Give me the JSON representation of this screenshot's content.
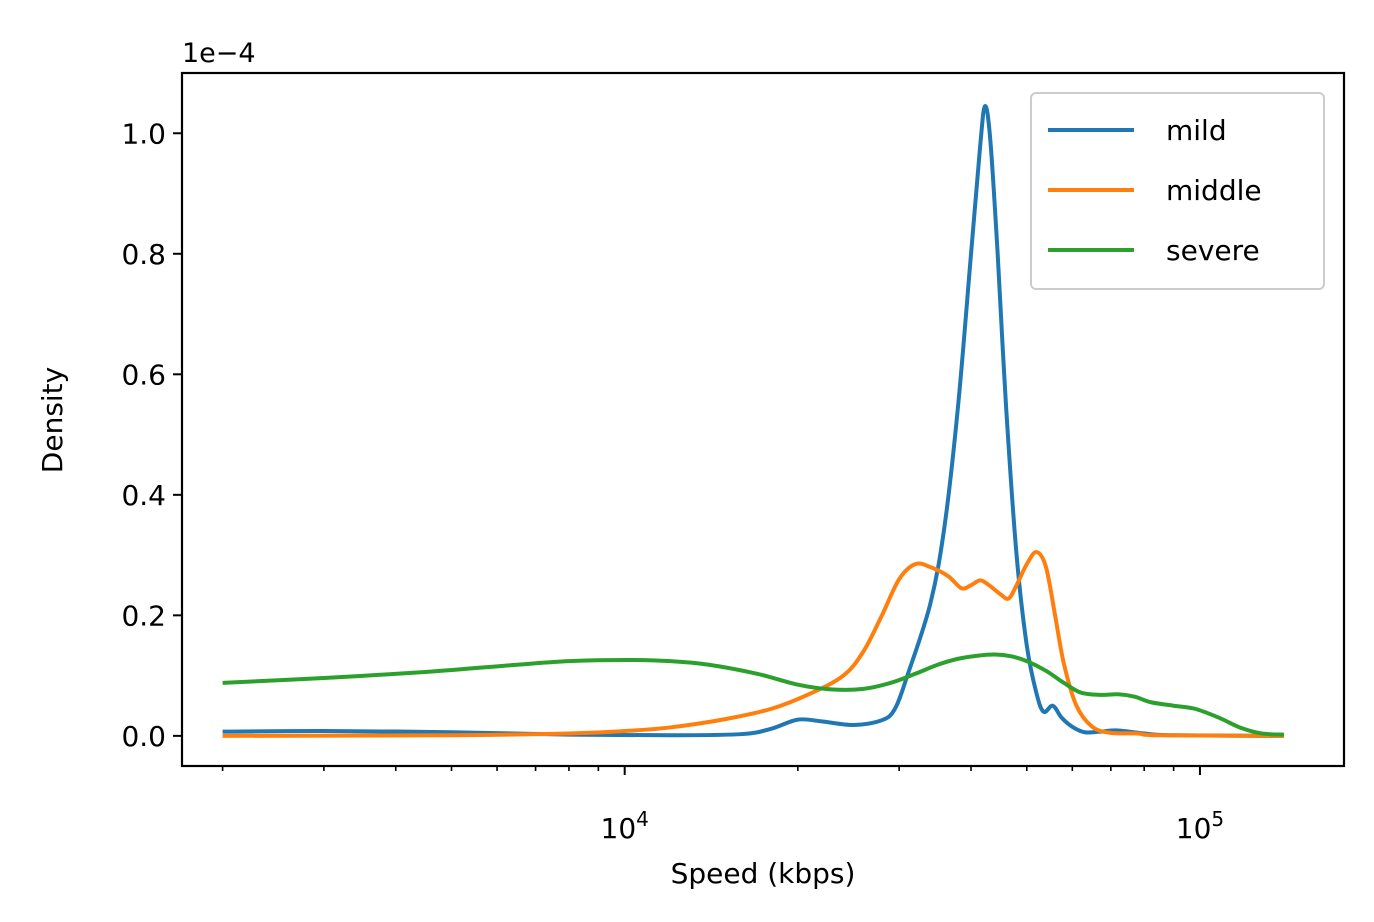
{
  "chart_data": {
    "type": "line",
    "xlabel": "Speed (kbps)",
    "ylabel": "Density",
    "xscale": "log",
    "xlim": [
      1700,
      178000
    ],
    "ylim": [
      -0.05,
      1.1
    ],
    "y_multiplier": "1e−4",
    "y_ticks": [
      0.0,
      0.2,
      0.4,
      0.6,
      0.8,
      1.0
    ],
    "y_tick_labels": [
      "0.0",
      "0.2",
      "0.4",
      "0.6",
      "0.8",
      "1.0"
    ],
    "x_major_ticks": [
      {
        "value": 10000,
        "base": "10",
        "exp": "4"
      },
      {
        "value": 100000,
        "base": "10",
        "exp": "5"
      }
    ],
    "x_minor_ticks": [
      2000,
      3000,
      4000,
      5000,
      6000,
      7000,
      8000,
      9000,
      20000,
      30000,
      40000,
      50000,
      60000,
      70000,
      80000,
      90000
    ],
    "grid": false,
    "legend_position": "top-right",
    "series": [
      {
        "name": "mild",
        "color": "#1f77b4",
        "points": [
          [
            2000,
            0.007
          ],
          [
            3000,
            0.008
          ],
          [
            5000,
            0.006
          ],
          [
            8000,
            0.002
          ],
          [
            12000,
            0.001
          ],
          [
            16000,
            0.003
          ],
          [
            18000,
            0.012
          ],
          [
            20000,
            0.027
          ],
          [
            22000,
            0.024
          ],
          [
            25000,
            0.018
          ],
          [
            28000,
            0.026
          ],
          [
            29500,
            0.045
          ],
          [
            31000,
            0.1
          ],
          [
            34000,
            0.22
          ],
          [
            36000,
            0.35
          ],
          [
            38000,
            0.55
          ],
          [
            40000,
            0.8
          ],
          [
            41500,
            0.98
          ],
          [
            42300,
            1.045
          ],
          [
            43200,
            0.99
          ],
          [
            44500,
            0.8
          ],
          [
            46000,
            0.55
          ],
          [
            48000,
            0.3
          ],
          [
            50000,
            0.15
          ],
          [
            52000,
            0.07
          ],
          [
            53500,
            0.04
          ],
          [
            55500,
            0.05
          ],
          [
            57500,
            0.03
          ],
          [
            60000,
            0.015
          ],
          [
            63000,
            0.006
          ],
          [
            67000,
            0.007
          ],
          [
            72000,
            0.009
          ],
          [
            80000,
            0.004
          ],
          [
            90000,
            0.001
          ],
          [
            140000,
            0.0
          ]
        ]
      },
      {
        "name": "middle",
        "color": "#ff7f0e",
        "points": [
          [
            2000,
            0.0
          ],
          [
            5000,
            0.001
          ],
          [
            8000,
            0.004
          ],
          [
            10000,
            0.008
          ],
          [
            12000,
            0.014
          ],
          [
            15000,
            0.028
          ],
          [
            18000,
            0.045
          ],
          [
            21000,
            0.07
          ],
          [
            24000,
            0.1
          ],
          [
            26000,
            0.14
          ],
          [
            28000,
            0.2
          ],
          [
            30000,
            0.26
          ],
          [
            32000,
            0.285
          ],
          [
            34000,
            0.28
          ],
          [
            36500,
            0.265
          ],
          [
            38500,
            0.245
          ],
          [
            40000,
            0.25
          ],
          [
            41500,
            0.258
          ],
          [
            43000,
            0.25
          ],
          [
            45000,
            0.235
          ],
          [
            46500,
            0.228
          ],
          [
            48000,
            0.25
          ],
          [
            50000,
            0.285
          ],
          [
            52000,
            0.305
          ],
          [
            54000,
            0.28
          ],
          [
            56000,
            0.2
          ],
          [
            58000,
            0.12
          ],
          [
            61000,
            0.05
          ],
          [
            65000,
            0.015
          ],
          [
            70000,
            0.005
          ],
          [
            78000,
            0.004
          ],
          [
            85000,
            0.001
          ],
          [
            140000,
            0.0
          ]
        ]
      },
      {
        "name": "severe",
        "color": "#2ca02c",
        "points": [
          [
            2000,
            0.088
          ],
          [
            3000,
            0.096
          ],
          [
            4500,
            0.106
          ],
          [
            6500,
            0.118
          ],
          [
            8000,
            0.124
          ],
          [
            10000,
            0.126
          ],
          [
            12000,
            0.124
          ],
          [
            14000,
            0.118
          ],
          [
            17000,
            0.103
          ],
          [
            20000,
            0.085
          ],
          [
            23000,
            0.077
          ],
          [
            26000,
            0.078
          ],
          [
            29000,
            0.088
          ],
          [
            32000,
            0.103
          ],
          [
            35000,
            0.118
          ],
          [
            38000,
            0.128
          ],
          [
            41000,
            0.133
          ],
          [
            44000,
            0.135
          ],
          [
            47000,
            0.132
          ],
          [
            50000,
            0.124
          ],
          [
            54000,
            0.108
          ],
          [
            58000,
            0.088
          ],
          [
            62000,
            0.072
          ],
          [
            67000,
            0.068
          ],
          [
            72000,
            0.069
          ],
          [
            77000,
            0.065
          ],
          [
            82000,
            0.056
          ],
          [
            90000,
            0.05
          ],
          [
            98000,
            0.045
          ],
          [
            108000,
            0.03
          ],
          [
            118000,
            0.013
          ],
          [
            128000,
            0.004
          ],
          [
            140000,
            0.002
          ]
        ]
      }
    ]
  }
}
